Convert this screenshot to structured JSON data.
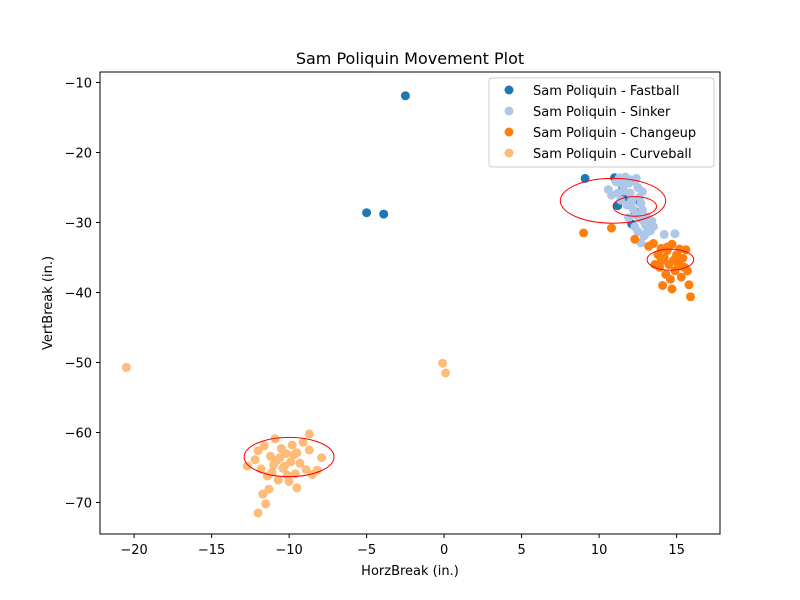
{
  "chart_data": {
    "type": "scatter",
    "title": "Sam Poliquin Movement Plot",
    "xlabel": "HorzBreak (in.)",
    "ylabel": "VertBreak (in.)",
    "xlim": [
      -22.2,
      17.8
    ],
    "ylim": [
      -74.5,
      -8.5
    ],
    "xticks": [
      -20,
      -15,
      -10,
      -5,
      0,
      5,
      10,
      15
    ],
    "yticks": [
      -10,
      -20,
      -30,
      -40,
      -50,
      -60,
      -70
    ],
    "grid": false,
    "legend_position": "top-right",
    "series": [
      {
        "name": "Sam Poliquin - Fastball",
        "color": "#1f77b4",
        "points": [
          [
            -2.5,
            -11.9
          ],
          [
            -5.0,
            -28.6
          ],
          [
            -3.9,
            -28.8
          ],
          [
            9.1,
            -23.7
          ],
          [
            11.0,
            -23.6
          ],
          [
            11.2,
            -27.6
          ],
          [
            11.6,
            -26.5
          ],
          [
            12.1,
            -30.2
          ],
          [
            12.3,
            -28.4
          ],
          [
            11.5,
            -24.8
          ],
          [
            12.6,
            -27.0
          ]
        ]
      },
      {
        "name": "Sam Poliquin - Sinker",
        "color": "#aec7e8",
        "points": [
          [
            10.6,
            -25.3
          ],
          [
            10.8,
            -26.1
          ],
          [
            11.1,
            -24.2
          ],
          [
            11.3,
            -23.6
          ],
          [
            11.5,
            -24.6
          ],
          [
            11.6,
            -25.5
          ],
          [
            11.7,
            -23.5
          ],
          [
            11.9,
            -24.4
          ],
          [
            12.0,
            -25.8
          ],
          [
            12.1,
            -26.7
          ],
          [
            12.3,
            -24.1
          ],
          [
            12.4,
            -23.7
          ],
          [
            12.5,
            -25.0
          ],
          [
            12.6,
            -26.4
          ],
          [
            12.7,
            -27.3
          ],
          [
            12.8,
            -25.6
          ],
          [
            11.4,
            -26.8
          ],
          [
            11.8,
            -27.5
          ],
          [
            12.2,
            -28.1
          ],
          [
            12.4,
            -28.9
          ],
          [
            12.6,
            -29.4
          ],
          [
            12.8,
            -28.2
          ],
          [
            12.9,
            -29.9
          ],
          [
            13.0,
            -30.4
          ],
          [
            13.1,
            -29.2
          ],
          [
            13.2,
            -30.9
          ],
          [
            13.3,
            -31.2
          ],
          [
            13.4,
            -29.8
          ],
          [
            13.5,
            -30.6
          ],
          [
            13.0,
            -31.6
          ],
          [
            12.7,
            -32.9
          ],
          [
            12.9,
            -31.9
          ],
          [
            12.3,
            -30.6
          ],
          [
            12.5,
            -31.3
          ],
          [
            14.2,
            -31.7
          ],
          [
            14.9,
            -31.6
          ],
          [
            11.9,
            -29.3
          ],
          [
            12.1,
            -27.0
          ],
          [
            11.2,
            -25.8
          ],
          [
            12.0,
            -23.9
          ]
        ]
      },
      {
        "name": "Sam Poliquin - Changeup",
        "color": "#ff7f0e",
        "points": [
          [
            9.0,
            -31.5
          ],
          [
            10.8,
            -30.8
          ],
          [
            12.3,
            -32.4
          ],
          [
            13.2,
            -33.4
          ],
          [
            13.5,
            -33.0
          ],
          [
            13.8,
            -34.6
          ],
          [
            13.9,
            -36.4
          ],
          [
            14.0,
            -33.7
          ],
          [
            14.2,
            -35.0
          ],
          [
            14.3,
            -37.4
          ],
          [
            14.4,
            -34.0
          ],
          [
            14.5,
            -36.0
          ],
          [
            14.6,
            -38.1
          ],
          [
            14.7,
            -33.1
          ],
          [
            14.8,
            -35.4
          ],
          [
            14.9,
            -36.9
          ],
          [
            15.0,
            -34.6
          ],
          [
            15.1,
            -35.9
          ],
          [
            15.2,
            -33.8
          ],
          [
            15.3,
            -37.8
          ],
          [
            15.4,
            -35.1
          ],
          [
            15.5,
            -36.4
          ],
          [
            15.6,
            -33.9
          ],
          [
            15.7,
            -36.9
          ],
          [
            14.1,
            -39.0
          ],
          [
            14.7,
            -39.5
          ],
          [
            15.8,
            -38.9
          ],
          [
            15.9,
            -40.6
          ],
          [
            13.6,
            -36.0
          ],
          [
            14.0,
            -35.5
          ],
          [
            15.2,
            -36.2
          ],
          [
            14.4,
            -33.5
          ]
        ]
      },
      {
        "name": "Sam Poliquin - Curveball",
        "color": "#ffbb78",
        "points": [
          [
            -20.5,
            -50.7
          ],
          [
            -0.1,
            -50.1
          ],
          [
            0.1,
            -51.5
          ],
          [
            -12.7,
            -64.8
          ],
          [
            -12.2,
            -63.9
          ],
          [
            -12.0,
            -62.6
          ],
          [
            -11.8,
            -65.2
          ],
          [
            -11.6,
            -61.9
          ],
          [
            -11.4,
            -66.2
          ],
          [
            -11.2,
            -63.4
          ],
          [
            -11.0,
            -64.6
          ],
          [
            -10.9,
            -60.9
          ],
          [
            -10.7,
            -66.8
          ],
          [
            -10.5,
            -62.3
          ],
          [
            -10.4,
            -65.1
          ],
          [
            -10.2,
            -63.0
          ],
          [
            -10.0,
            -67.0
          ],
          [
            -9.9,
            -64.2
          ],
          [
            -9.8,
            -61.8
          ],
          [
            -9.6,
            -65.9
          ],
          [
            -9.5,
            -62.9
          ],
          [
            -9.3,
            -64.4
          ],
          [
            -9.1,
            -61.4
          ],
          [
            -8.9,
            -65.3
          ],
          [
            -8.7,
            -62.5
          ],
          [
            -8.5,
            -66.0
          ],
          [
            -8.2,
            -65.4
          ],
          [
            -7.9,
            -63.6
          ],
          [
            -8.7,
            -60.2
          ],
          [
            -11.7,
            -68.8
          ],
          [
            -11.3,
            -68.1
          ],
          [
            -11.5,
            -70.2
          ],
          [
            -12.0,
            -71.5
          ],
          [
            -9.5,
            -67.9
          ],
          [
            -10.8,
            -64.0
          ],
          [
            -10.3,
            -64.8
          ],
          [
            -9.7,
            -63.2
          ],
          [
            -11.1,
            -65.7
          ],
          [
            -10.6,
            -63.6
          ],
          [
            -10.1,
            -66.1
          ]
        ]
      }
    ],
    "ellipses": [
      {
        "cx": 10.9,
        "cy": -26.9,
        "rx": 3.4,
        "ry": 3.2,
        "color": "#ff0000"
      },
      {
        "cx": 12.3,
        "cy": -27.7,
        "rx": 1.4,
        "ry": 1.4,
        "color": "#ff0000"
      },
      {
        "cx": 14.6,
        "cy": -35.3,
        "rx": 1.5,
        "ry": 1.5,
        "color": "#ff0000"
      },
      {
        "cx": -10.0,
        "cy": -63.5,
        "rx": 2.9,
        "ry": 2.8,
        "color": "#ff0000"
      }
    ]
  }
}
